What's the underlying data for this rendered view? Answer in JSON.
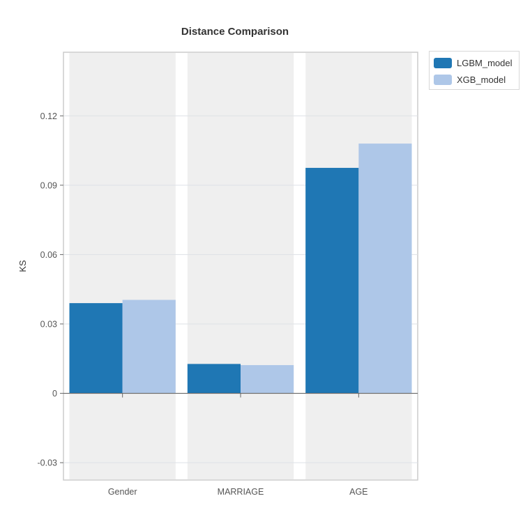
{
  "chart_data": {
    "type": "bar",
    "title": "Distance Comparison",
    "xlabel": "",
    "ylabel": "KS",
    "categories": [
      "Gender",
      "MARRIAGE",
      "AGE"
    ],
    "series": [
      {
        "name": "LGBM_model",
        "color": "#1f77b4",
        "values": [
          0.039,
          0.0127,
          0.0975
        ]
      },
      {
        "name": "XGB_model",
        "color": "#aec7e8",
        "values": [
          0.0404,
          0.0122,
          0.108
        ]
      }
    ],
    "ylim": [
      -0.0375,
      0.1475
    ],
    "yticks": [
      -0.03,
      0,
      0.03,
      0.06,
      0.09,
      0.12
    ],
    "ytick_labels": [
      "-0.03",
      "0",
      "0.03",
      "0.06",
      "0.09",
      "0.12"
    ],
    "grid": true,
    "legend_position": "top-right outside"
  }
}
